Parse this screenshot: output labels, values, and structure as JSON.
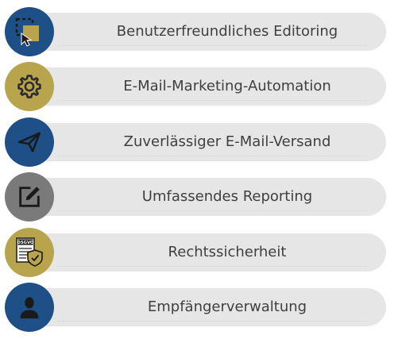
{
  "features": [
    {
      "label": "Benutzerfreundliches Editoring",
      "icon": "drag-select-icon",
      "color": "#1e4f86"
    },
    {
      "label": "E-Mail-Marketing-Automation",
      "icon": "gear-icon",
      "color": "#b9a44e"
    },
    {
      "label": "Zuverlässiger E-Mail-Versand",
      "icon": "paper-plane-icon",
      "color": "#1e4f86"
    },
    {
      "label": "Umfassendes Reporting",
      "icon": "edit-icon",
      "color": "#7a7a7a"
    },
    {
      "label": "Rechtssicherheit",
      "icon": "dsgvo-shield-icon",
      "icon_text": "DSGVO",
      "color": "#b9a44e"
    },
    {
      "label": "Empfängerverwaltung",
      "icon": "person-icon",
      "color": "#1e4f86"
    }
  ]
}
